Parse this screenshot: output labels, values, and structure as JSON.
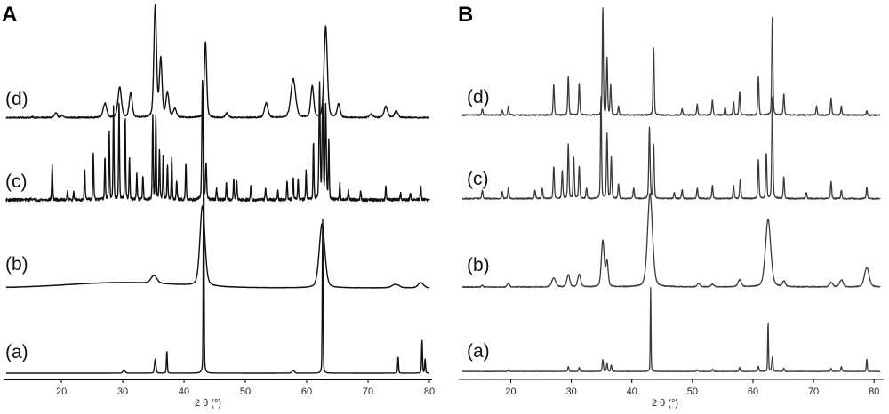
{
  "chart_data": [
    {
      "type": "line",
      "panel": "A",
      "xlabel": "2 θ (°)",
      "ylabel": "",
      "xlim": [
        11,
        80
      ],
      "xticks": [
        "20",
        "30",
        "40",
        "50",
        "60",
        "70",
        "80"
      ],
      "grid": false,
      "series": [
        {
          "name": "(d)",
          "baseline": 0.02,
          "noise": 0.012,
          "peaks": [
            [
              15.3,
              0.01,
              0.2
            ],
            [
              19.1,
              0.04,
              0.5
            ],
            [
              20.1,
              0.02,
              0.4
            ],
            [
              27.1,
              0.13,
              0.6
            ],
            [
              29.5,
              0.27,
              0.6
            ],
            [
              31.3,
              0.22,
              0.5
            ],
            [
              35.3,
              1.0,
              0.45
            ],
            [
              36.2,
              0.52,
              0.45
            ],
            [
              37.3,
              0.22,
              0.5
            ],
            [
              38.5,
              0.08,
              0.5
            ],
            [
              43.5,
              0.68,
              0.4
            ],
            [
              47.0,
              0.04,
              0.5
            ],
            [
              53.4,
              0.13,
              0.6
            ],
            [
              57.8,
              0.35,
              0.8
            ],
            [
              60.9,
              0.28,
              0.5
            ],
            [
              63.1,
              0.82,
              0.55
            ],
            [
              65.2,
              0.12,
              0.5
            ],
            [
              70.5,
              0.03,
              0.6
            ],
            [
              72.9,
              0.1,
              0.6
            ],
            [
              74.6,
              0.06,
              0.6
            ]
          ]
        },
        {
          "name": "(c)",
          "baseline": 0.03,
          "noise": 0.025,
          "peaks": [
            [
              15.1,
              0.02,
              0.15
            ],
            [
              18.5,
              0.3,
              0.15
            ],
            [
              21.0,
              0.08,
              0.15
            ],
            [
              22.0,
              0.06,
              0.15
            ],
            [
              23.8,
              0.26,
              0.15
            ],
            [
              25.2,
              0.4,
              0.15
            ],
            [
              27.1,
              0.36,
              0.15
            ],
            [
              27.8,
              0.58,
              0.15
            ],
            [
              28.5,
              0.79,
              0.15
            ],
            [
              29.4,
              0.82,
              0.15
            ],
            [
              30.4,
              0.7,
              0.15
            ],
            [
              31.1,
              0.36,
              0.15
            ],
            [
              32.3,
              0.22,
              0.15
            ],
            [
              33.3,
              0.2,
              0.15
            ],
            [
              34.9,
              0.72,
              0.15
            ],
            [
              35.4,
              0.7,
              0.15
            ],
            [
              36.0,
              0.42,
              0.15
            ],
            [
              36.6,
              0.38,
              0.15
            ],
            [
              37.3,
              0.3,
              0.15
            ],
            [
              38.0,
              0.36,
              0.15
            ],
            [
              38.8,
              0.16,
              0.15
            ],
            [
              40.3,
              0.32,
              0.15
            ],
            [
              43.0,
              1.0,
              0.2
            ],
            [
              43.6,
              0.3,
              0.2
            ],
            [
              45.3,
              0.1,
              0.15
            ],
            [
              46.9,
              0.14,
              0.15
            ],
            [
              48.1,
              0.18,
              0.15
            ],
            [
              48.6,
              0.16,
              0.15
            ],
            [
              50.9,
              0.12,
              0.15
            ],
            [
              53.3,
              0.1,
              0.15
            ],
            [
              55.3,
              0.08,
              0.15
            ],
            [
              56.8,
              0.16,
              0.15
            ],
            [
              57.8,
              0.2,
              0.15
            ],
            [
              58.6,
              0.18,
              0.15
            ],
            [
              59.9,
              0.24,
              0.15
            ],
            [
              61.1,
              0.5,
              0.15
            ],
            [
              62.1,
              0.98,
              0.2
            ],
            [
              62.6,
              0.82,
              0.2
            ],
            [
              63.1,
              0.8,
              0.2
            ],
            [
              63.6,
              0.5,
              0.15
            ],
            [
              65.4,
              0.14,
              0.15
            ],
            [
              66.8,
              0.08,
              0.15
            ],
            [
              68.8,
              0.08,
              0.15
            ],
            [
              72.9,
              0.12,
              0.15
            ],
            [
              75.3,
              0.06,
              0.15
            ],
            [
              76.9,
              0.06,
              0.15
            ],
            [
              78.6,
              0.12,
              0.15
            ]
          ]
        },
        {
          "name": "(b)",
          "baseline": 0.0,
          "noise": 0.004,
          "humps": [
            [
              30,
              0.06,
              9
            ]
          ],
          "peaks": [
            [
              35.1,
              0.09,
              1.0
            ],
            [
              43.0,
              0.9,
              0.85
            ],
            [
              62.5,
              0.72,
              0.95
            ],
            [
              74.5,
              0.04,
              1.2
            ],
            [
              78.6,
              0.06,
              0.9
            ]
          ]
        },
        {
          "name": "(a)",
          "baseline": 0.0,
          "noise": 0.0,
          "peaks": [
            [
              30.2,
              0.01,
              0.4
            ],
            [
              35.3,
              0.05,
              0.25
            ],
            [
              37.2,
              0.08,
              0.15
            ],
            [
              43.2,
              1.0,
              0.12
            ],
            [
              57.8,
              0.01,
              0.4
            ],
            [
              62.6,
              0.55,
              0.13
            ],
            [
              74.9,
              0.06,
              0.15
            ],
            [
              78.8,
              0.12,
              0.15
            ],
            [
              79.3,
              0.05,
              0.15
            ]
          ]
        }
      ]
    },
    {
      "type": "line",
      "panel": "B",
      "xlabel": "2 θ (°)",
      "ylabel": "",
      "xlim": [
        12,
        81
      ],
      "xticks": [
        "20",
        "30",
        "40",
        "50",
        "60",
        "70",
        "80"
      ],
      "grid": false,
      "series": [
        {
          "name": "(d)",
          "baseline": 0.02,
          "noise": 0.012,
          "peaks": [
            [
              15.3,
              0.06,
              0.2
            ],
            [
              18.6,
              0.04,
              0.2
            ],
            [
              19.6,
              0.08,
              0.2
            ],
            [
              27.1,
              0.28,
              0.2
            ],
            [
              29.5,
              0.36,
              0.2
            ],
            [
              31.3,
              0.3,
              0.2
            ],
            [
              35.2,
              1.0,
              0.18
            ],
            [
              35.9,
              0.52,
              0.2
            ],
            [
              36.5,
              0.28,
              0.2
            ],
            [
              37.8,
              0.08,
              0.2
            ],
            [
              43.6,
              0.62,
              0.2
            ],
            [
              48.3,
              0.06,
              0.2
            ],
            [
              50.8,
              0.1,
              0.2
            ],
            [
              53.3,
              0.14,
              0.2
            ],
            [
              55.4,
              0.08,
              0.2
            ],
            [
              56.8,
              0.12,
              0.2
            ],
            [
              57.8,
              0.22,
              0.2
            ],
            [
              60.9,
              0.36,
              0.2
            ],
            [
              63.2,
              0.9,
              0.2
            ],
            [
              65.1,
              0.2,
              0.2
            ],
            [
              70.5,
              0.08,
              0.2
            ],
            [
              72.9,
              0.16,
              0.2
            ],
            [
              74.6,
              0.08,
              0.2
            ],
            [
              78.8,
              0.04,
              0.2
            ]
          ]
        },
        {
          "name": "(c)",
          "baseline": 0.02,
          "noise": 0.012,
          "peaks": [
            [
              15.3,
              0.08,
              0.2
            ],
            [
              18.6,
              0.06,
              0.2
            ],
            [
              19.6,
              0.1,
              0.2
            ],
            [
              24.0,
              0.08,
              0.2
            ],
            [
              25.2,
              0.1,
              0.2
            ],
            [
              27.1,
              0.3,
              0.2
            ],
            [
              28.5,
              0.26,
              0.2
            ],
            [
              29.5,
              0.5,
              0.2
            ],
            [
              30.4,
              0.38,
              0.2
            ],
            [
              31.3,
              0.3,
              0.2
            ],
            [
              32.5,
              0.1,
              0.2
            ],
            [
              34.9,
              0.96,
              0.18
            ],
            [
              35.9,
              0.6,
              0.2
            ],
            [
              36.6,
              0.38,
              0.2
            ],
            [
              37.8,
              0.14,
              0.2
            ],
            [
              40.3,
              0.1,
              0.2
            ],
            [
              42.9,
              0.66,
              0.22
            ],
            [
              43.6,
              0.5,
              0.2
            ],
            [
              47.0,
              0.06,
              0.2
            ],
            [
              48.3,
              0.08,
              0.2
            ],
            [
              50.8,
              0.1,
              0.2
            ],
            [
              53.3,
              0.12,
              0.2
            ],
            [
              56.8,
              0.12,
              0.2
            ],
            [
              57.9,
              0.18,
              0.2
            ],
            [
              60.9,
              0.36,
              0.2
            ],
            [
              62.2,
              0.42,
              0.2
            ],
            [
              63.2,
              0.94,
              0.2
            ],
            [
              65.1,
              0.2,
              0.2
            ],
            [
              68.8,
              0.06,
              0.2
            ],
            [
              72.9,
              0.16,
              0.2
            ],
            [
              74.6,
              0.08,
              0.2
            ],
            [
              78.8,
              0.1,
              0.2
            ]
          ]
        },
        {
          "name": "(b)",
          "baseline": 0.01,
          "noise": 0.01,
          "peaks": [
            [
              15.3,
              0.02,
              0.3
            ],
            [
              19.6,
              0.04,
              0.4
            ],
            [
              27.1,
              0.1,
              0.7
            ],
            [
              29.5,
              0.14,
              0.5
            ],
            [
              31.3,
              0.14,
              0.5
            ],
            [
              35.2,
              0.52,
              0.5
            ],
            [
              35.9,
              0.28,
              0.4
            ],
            [
              43.0,
              1.05,
              0.85
            ],
            [
              51.0,
              0.04,
              0.5
            ],
            [
              53.3,
              0.03,
              0.5
            ],
            [
              57.8,
              0.08,
              0.6
            ],
            [
              62.5,
              0.76,
              0.9
            ],
            [
              65.1,
              0.06,
              0.5
            ],
            [
              72.9,
              0.05,
              0.6
            ],
            [
              74.6,
              0.08,
              0.6
            ],
            [
              78.8,
              0.22,
              0.8
            ]
          ]
        },
        {
          "name": "(a)",
          "baseline": 0.01,
          "noise": 0.006,
          "peaks": [
            [
              19.6,
              0.02,
              0.2
            ],
            [
              29.5,
              0.06,
              0.2
            ],
            [
              31.3,
              0.05,
              0.2
            ],
            [
              35.2,
              0.15,
              0.2
            ],
            [
              35.9,
              0.1,
              0.2
            ],
            [
              36.6,
              0.08,
              0.2
            ],
            [
              43.1,
              1.05,
              0.12
            ],
            [
              50.8,
              0.02,
              0.2
            ],
            [
              53.3,
              0.03,
              0.2
            ],
            [
              57.8,
              0.05,
              0.2
            ],
            [
              60.9,
              0.06,
              0.2
            ],
            [
              62.5,
              0.62,
              0.14
            ],
            [
              63.2,
              0.18,
              0.2
            ],
            [
              65.1,
              0.04,
              0.2
            ],
            [
              72.9,
              0.04,
              0.2
            ],
            [
              74.6,
              0.06,
              0.2
            ],
            [
              78.8,
              0.16,
              0.15
            ]
          ]
        }
      ]
    }
  ]
}
